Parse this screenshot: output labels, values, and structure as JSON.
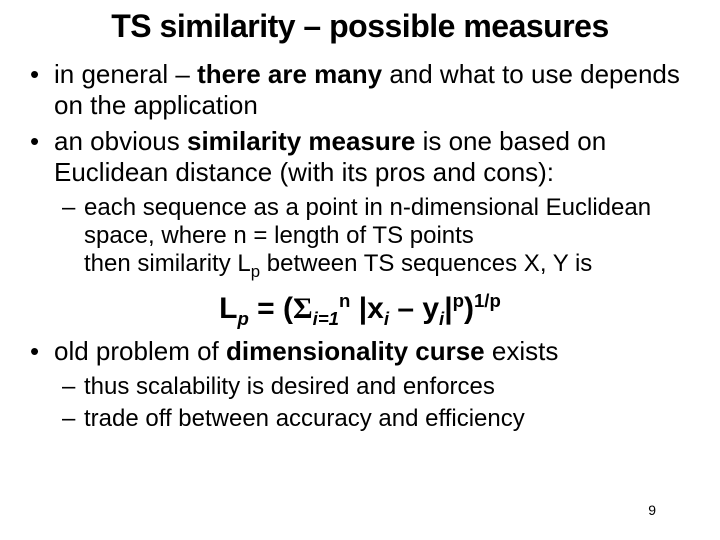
{
  "title": "TS similarity – possible measures",
  "bullets": {
    "b1_a": "in general – ",
    "b1_bold": "there are many ",
    "b1_b": "and what to use depends on the application",
    "b2_a": "an obvious ",
    "b2_bold": "similarity measure ",
    "b2_b": "is one based on Euclidean distance (with its pros and cons):",
    "b2_sub1_a": "each sequence as a point in n-dimensional Euclidean space, where n = length of TS points",
    "b2_sub1_b_pre": "then similarity L",
    "b2_sub1_b_sub": "p",
    "b2_sub1_b_post": " between TS sequences X, Y is",
    "b3_a": "old problem of ",
    "b3_bold": "dimensionality curse ",
    "b3_b": "exists",
    "b3_sub1": "thus scalability is desired and enforces",
    "b3_sub2": "trade off between accuracy and efficiency"
  },
  "formula": {
    "lhs_L": "L",
    "lhs_p": "p",
    "eq": " = (",
    "sigma": "Σ",
    "sig_sub": "i=1",
    "sig_sup": "n",
    "mid": " |x",
    "xi_sub": "i",
    "mid2": " – y",
    "yi_sub": "i",
    "bar": "|",
    "p_sup": "p",
    "close": ")",
    "onep": "1/p"
  },
  "page_number": "9"
}
